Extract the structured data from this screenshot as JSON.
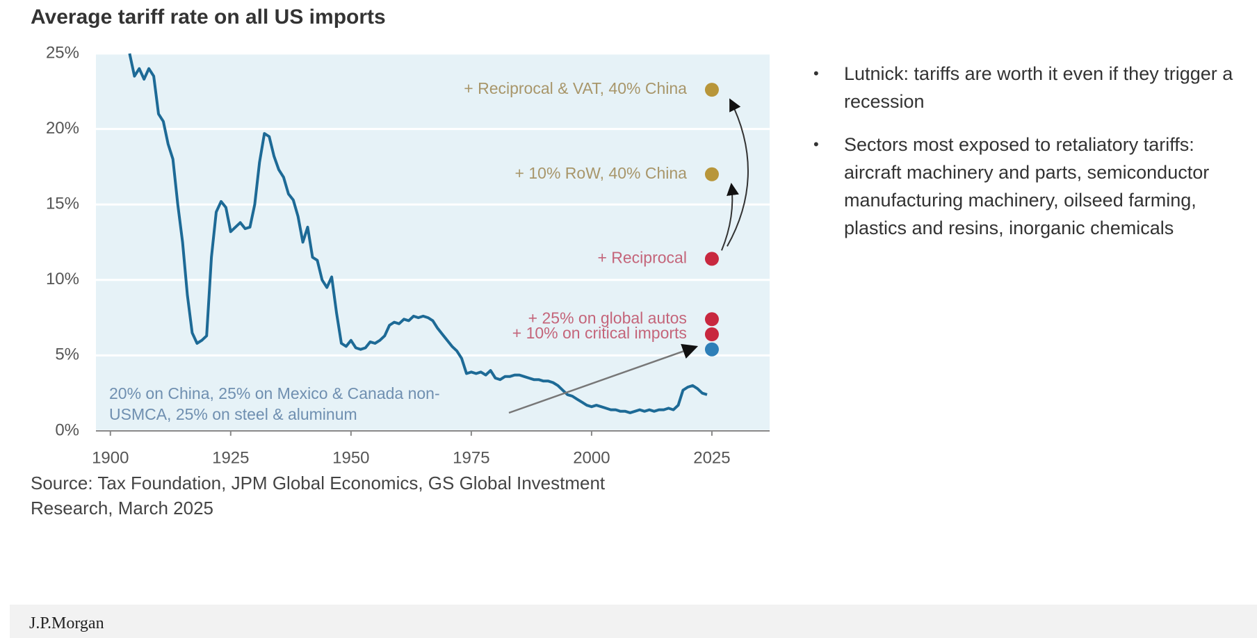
{
  "chart_data": {
    "type": "line",
    "title": "Average tariff rate on all US imports",
    "source": [
      "Source: Tax Foundation, JPM Global Economics, GS Global Investment",
      "Research, March 2025"
    ],
    "color": "#1d6a96",
    "x": [
      1904,
      1905,
      1906,
      1907,
      1908,
      1909,
      1910,
      1911,
      1912,
      1913,
      1914,
      1915,
      1916,
      1917,
      1918,
      1919,
      1920,
      1921,
      1922,
      1923,
      1924,
      1925,
      1926,
      1927,
      1928,
      1929,
      1930,
      1931,
      1932,
      1933,
      1934,
      1935,
      1936,
      1937,
      1938,
      1939,
      1940,
      1941,
      1942,
      1943,
      1944,
      1945,
      1946,
      1947,
      1948,
      1949,
      1950,
      1951,
      1952,
      1953,
      1954,
      1955,
      1956,
      1957,
      1958,
      1959,
      1960,
      1961,
      1962,
      1963,
      1964,
      1965,
      1966,
      1967,
      1968,
      1969,
      1970,
      1971,
      1972,
      1973,
      1974,
      1975,
      1976,
      1977,
      1978,
      1979,
      1980,
      1981,
      1982,
      1983,
      1984,
      1985,
      1986,
      1987,
      1988,
      1989,
      1990,
      1991,
      1992,
      1993,
      1994,
      1995,
      1996,
      1997,
      1998,
      1999,
      2000,
      2001,
      2002,
      2003,
      2004,
      2005,
      2006,
      2007,
      2008,
      2009,
      2010,
      2011,
      2012,
      2013,
      2014,
      2015,
      2016,
      2017,
      2018,
      2019,
      2020,
      2021,
      2022,
      2023,
      2024
    ],
    "values": [
      25,
      23.5,
      24,
      23.3,
      24,
      23.5,
      21,
      20.5,
      19,
      18,
      15,
      12.5,
      9,
      6.5,
      5.8,
      6,
      6.3,
      11.5,
      14.5,
      15.2,
      14.8,
      13.2,
      13.5,
      13.8,
      13.4,
      13.5,
      15,
      17.8,
      19.7,
      19.5,
      18.2,
      17.3,
      16.8,
      15.7,
      15.3,
      14.2,
      12.5,
      13.5,
      11.5,
      11.3,
      10,
      9.5,
      10.2,
      7.8,
      5.8,
      5.6,
      6,
      5.5,
      5.4,
      5.5,
      5.9,
      5.8,
      6,
      6.3,
      7,
      7.2,
      7.1,
      7.4,
      7.3,
      7.6,
      7.5,
      7.6,
      7.5,
      7.3,
      6.8,
      6.4,
      6,
      5.6,
      5.3,
      4.8,
      3.8,
      3.9,
      3.8,
      3.9,
      3.7,
      4,
      3.5,
      3.4,
      3.6,
      3.6,
      3.7,
      3.7,
      3.6,
      3.5,
      3.4,
      3.4,
      3.3,
      3.3,
      3.2,
      3,
      2.7,
      2.4,
      2.3,
      2.1,
      1.9,
      1.7,
      1.6,
      1.7,
      1.6,
      1.5,
      1.4,
      1.4,
      1.3,
      1.3,
      1.2,
      1.3,
      1.4,
      1.3,
      1.4,
      1.3,
      1.4,
      1.4,
      1.5,
      1.4,
      1.7,
      2.7,
      2.9,
      3,
      2.8,
      2.5,
      2.4
    ],
    "point_x": 2025,
    "points": [
      {
        "label": "+ Reciprocal & VAT, 40% China",
        "value": 22.6,
        "color": "#b8963a",
        "label_color": "#a8966a"
      },
      {
        "label": "+ 10% RoW, 40% China",
        "value": 17,
        "color": "#b8963a",
        "label_color": "#a8966a"
      },
      {
        "label": "+ Reciprocal",
        "value": 11.4,
        "color": "#c8283f",
        "label_color": "#c4657a"
      },
      {
        "label": "+ 25% on global autos",
        "value": 7.4,
        "color": "#c8283f",
        "label_color": "#c4657a"
      },
      {
        "label": "+ 10% on critical imports",
        "value": 6.4,
        "color": "#c8283f",
        "label_color": "#c4657a"
      },
      {
        "label": null,
        "value": 5.4,
        "color": "#2e7fb8",
        "label_color": "#6f8fb0"
      }
    ],
    "annotation": [
      "20% on China, 25% on Mexico & Canada non-",
      "USMCA, 25% on steel & aluminum"
    ],
    "xlim": [
      1897,
      2037
    ],
    "ylim": [
      0,
      25
    ],
    "xticks": [
      1900,
      1925,
      1950,
      1975,
      2000,
      2025
    ],
    "yticks": [
      {
        "value": 0,
        "label": "0%"
      },
      {
        "value": 5,
        "label": "5%"
      },
      {
        "value": 10,
        "label": "10%"
      },
      {
        "value": 15,
        "label": "15%"
      },
      {
        "value": 20,
        "label": "20%"
      },
      {
        "value": 25,
        "label": "25%"
      }
    ],
    "grid": true
  },
  "notes": [
    "Lutnick: tariffs are worth it even if they trigger a recession",
    "Sectors most exposed to retaliatory tariffs: aircraft machinery and parts, semiconductor manufacturing machinery, oilseed farming, plastics and resins, inorganic chemicals"
  ],
  "footer": "J.P.Morgan"
}
